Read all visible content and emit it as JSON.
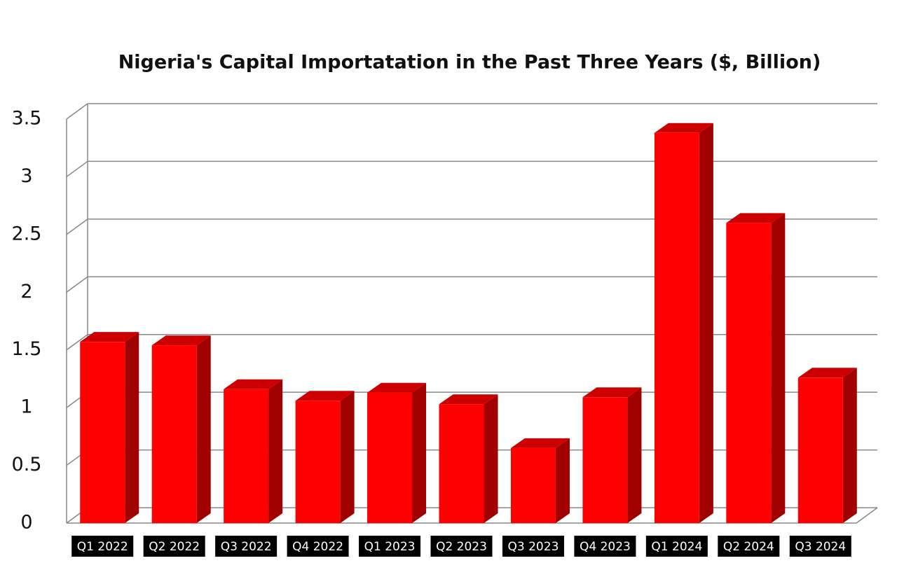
{
  "chart_data": {
    "type": "bar",
    "title": "Nigeria's Capital Importatation in the Past Three Years ($, Billion)",
    "categories": [
      "Q1 2022",
      "Q2 2022",
      "Q3 2022",
      "Q4 2022",
      "Q1 2023",
      "Q2 2023",
      "Q3 2023",
      "Q4 2023",
      "Q1 2024",
      "Q2 2024",
      "Q3 2024"
    ],
    "values": [
      1.57,
      1.54,
      1.16,
      1.06,
      1.13,
      1.03,
      0.65,
      1.09,
      3.38,
      2.6,
      1.26
    ],
    "color": "#ff0000",
    "ylim": [
      0,
      3.5
    ],
    "yticks": [
      0,
      0.5,
      1,
      1.5,
      2,
      2.5,
      3,
      3.5
    ],
    "grid": true
  }
}
